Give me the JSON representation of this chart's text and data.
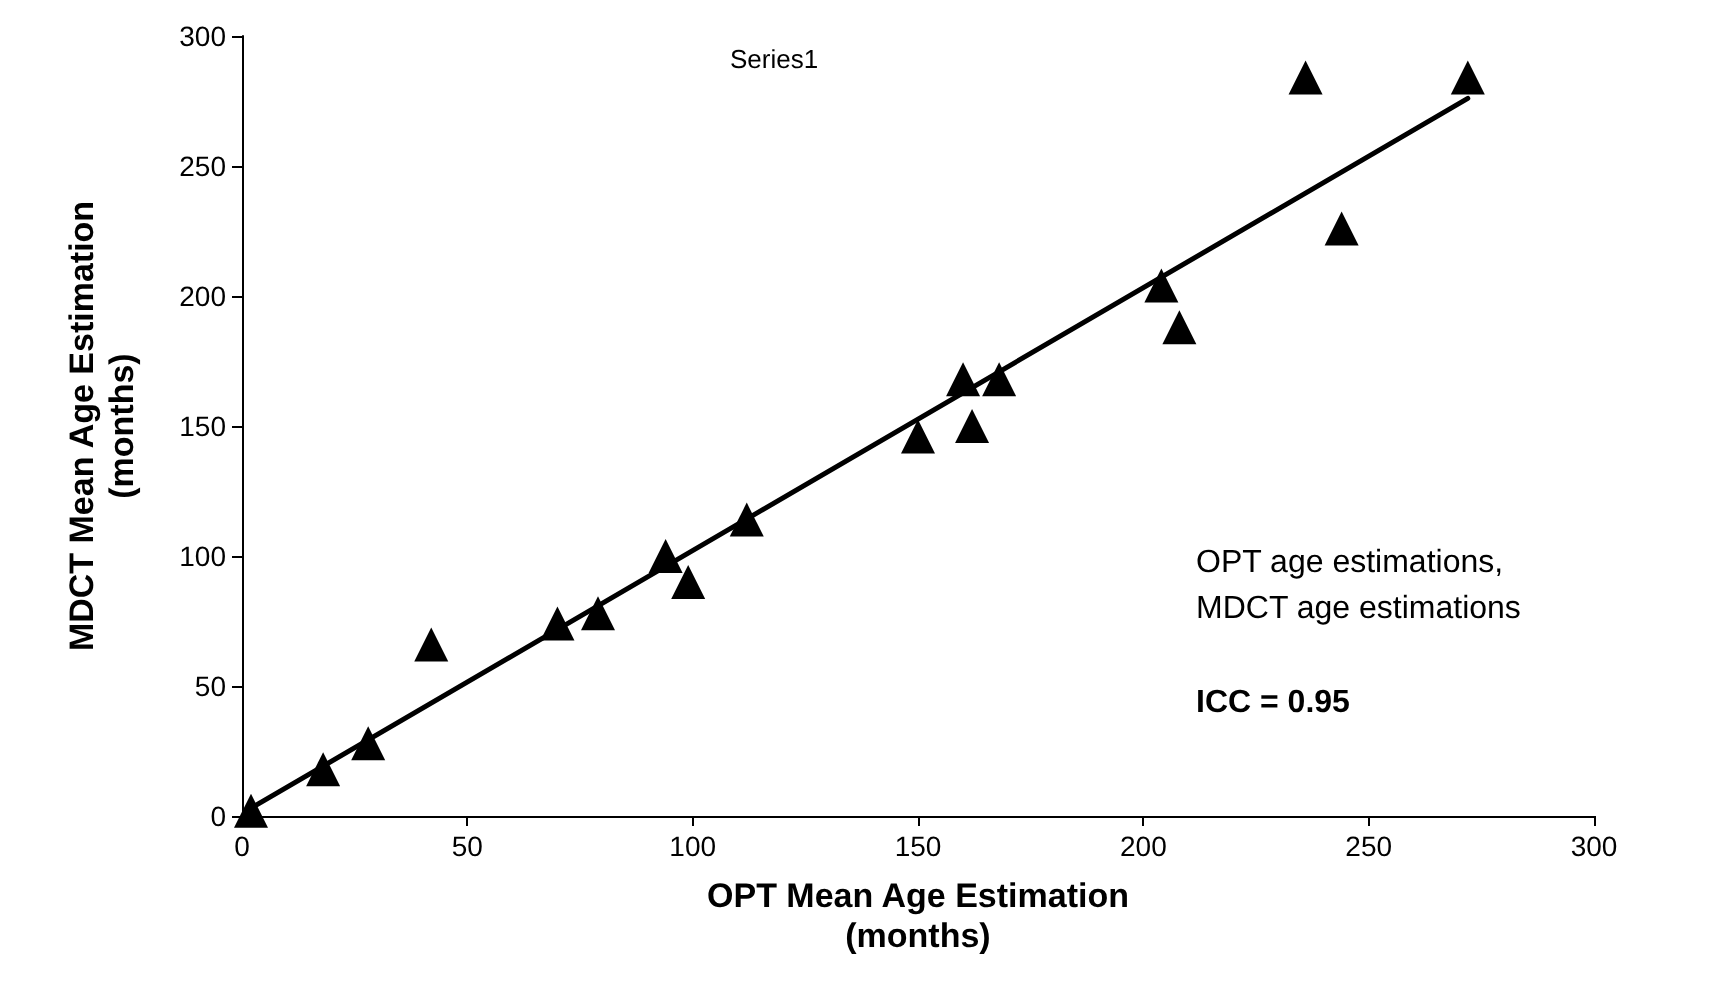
{
  "chart_data": {
    "type": "scatter",
    "xlabel": "OPT Mean Age Estimation\n(months)",
    "ylabel": "MDCT Mean Age Estimation\n(months)",
    "x": [
      2,
      18,
      28,
      42,
      70,
      79,
      94,
      99,
      112,
      150,
      160,
      162,
      168,
      204,
      208,
      236,
      244,
      272
    ],
    "series": [
      {
        "color": "#000000",
        "marker": "triangle",
        "values": [
          2,
          18,
          28,
          66,
          74,
          78,
          100,
          90,
          114,
          146,
          168,
          150,
          168,
          204,
          188,
          284,
          226,
          284
        ]
      },
      {
        "type": "line",
        "color": "#000000",
        "marker": "none",
        "x": [
          2,
          272
        ],
        "values": [
          3,
          276
        ]
      }
    ],
    "xlim": [
      0,
      300
    ],
    "xticks": [
      0,
      50,
      100,
      150,
      200,
      250,
      300
    ],
    "ylim": [
      0,
      300
    ],
    "yticks": [
      0,
      50,
      100,
      150,
      200,
      250,
      300
    ],
    "grid": false,
    "annotations": [
      "Series1",
      "OPT age estimations,\nMDCT age estimations",
      "ICC = 0.95"
    ]
  }
}
